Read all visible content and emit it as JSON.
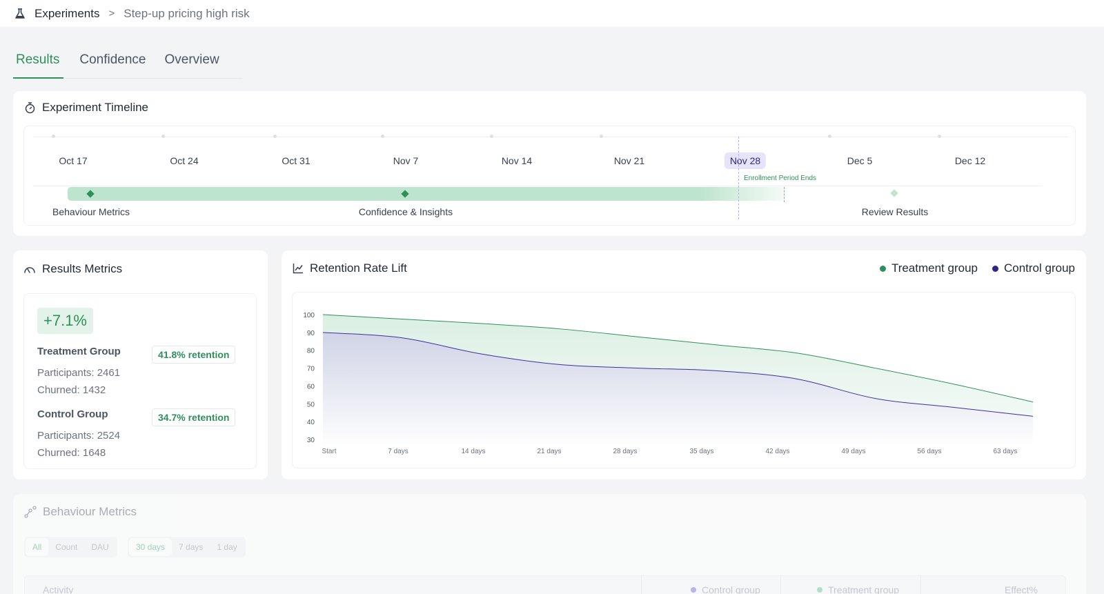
{
  "breadcrumb": {
    "root": "Experiments",
    "separator": ">",
    "current": "Step-up pricing high risk"
  },
  "tabs": [
    {
      "label": "Results",
      "active": true
    },
    {
      "label": "Confidence",
      "active": false
    },
    {
      "label": "Overview",
      "active": false
    }
  ],
  "timeline": {
    "title": "Experiment Timeline",
    "dates": [
      "Oct 17",
      "Oct 24",
      "Oct 31",
      "Nov 7",
      "Nov 14",
      "Nov 21",
      "Nov 28",
      "Dec 5",
      "Dec 12"
    ],
    "highlighted_date": "Nov 28",
    "enrollment_label": "Enrollment Period Ends",
    "milestones": [
      {
        "label": "Behaviour Metrics"
      },
      {
        "label": "Confidence & Insights"
      },
      {
        "label": "Review Results"
      }
    ]
  },
  "results_metrics": {
    "title": "Results Metrics",
    "lift": "+7.1%",
    "treatment": {
      "name": "Treatment Group",
      "retention": "41.8% retention",
      "participants": "Participants: 2461",
      "churned": "Churned: 1432"
    },
    "control": {
      "name": "Control Group",
      "retention": "34.7% retention",
      "participants": "Participants: 2524",
      "churned": "Churned: 1648"
    }
  },
  "retention_chart": {
    "title": "Retention Rate Lift",
    "legend": [
      {
        "label": "Treatment group",
        "color": "#2f8f5b"
      },
      {
        "label": "Control group",
        "color": "#2e2585"
      }
    ]
  },
  "chart_data": {
    "type": "area",
    "title": "Retention Rate Lift",
    "x": [
      "Start",
      "7 days",
      "14 days",
      "21 days",
      "28 days",
      "35 days",
      "42 days",
      "49 days",
      "56 days",
      "63 days"
    ],
    "y_ticks": [
      100,
      90,
      80,
      70,
      60,
      50,
      40,
      30
    ],
    "ylim": [
      30,
      100
    ],
    "series": [
      {
        "name": "Treatment group",
        "color": "#2f8f5b",
        "values": [
          100,
          97.5,
          95,
          92,
          87.5,
          83,
          78.5,
          70,
          61,
          51
        ]
      },
      {
        "name": "Control group",
        "color": "#2e2585",
        "values": [
          90,
          87,
          78,
          72,
          70,
          68.5,
          64,
          53,
          48,
          43
        ]
      }
    ],
    "legend_position": "top-right",
    "grid": false
  },
  "behaviour_metrics": {
    "title": "Behaviour Metrics",
    "filter_type": [
      "All",
      "Count",
      "DAU"
    ],
    "filter_period": [
      "30 days",
      "7 days",
      "1 day"
    ],
    "columns": {
      "activity": "Activity",
      "control": "Control group",
      "treatment": "Treatment group",
      "effect": "Effect%"
    }
  }
}
